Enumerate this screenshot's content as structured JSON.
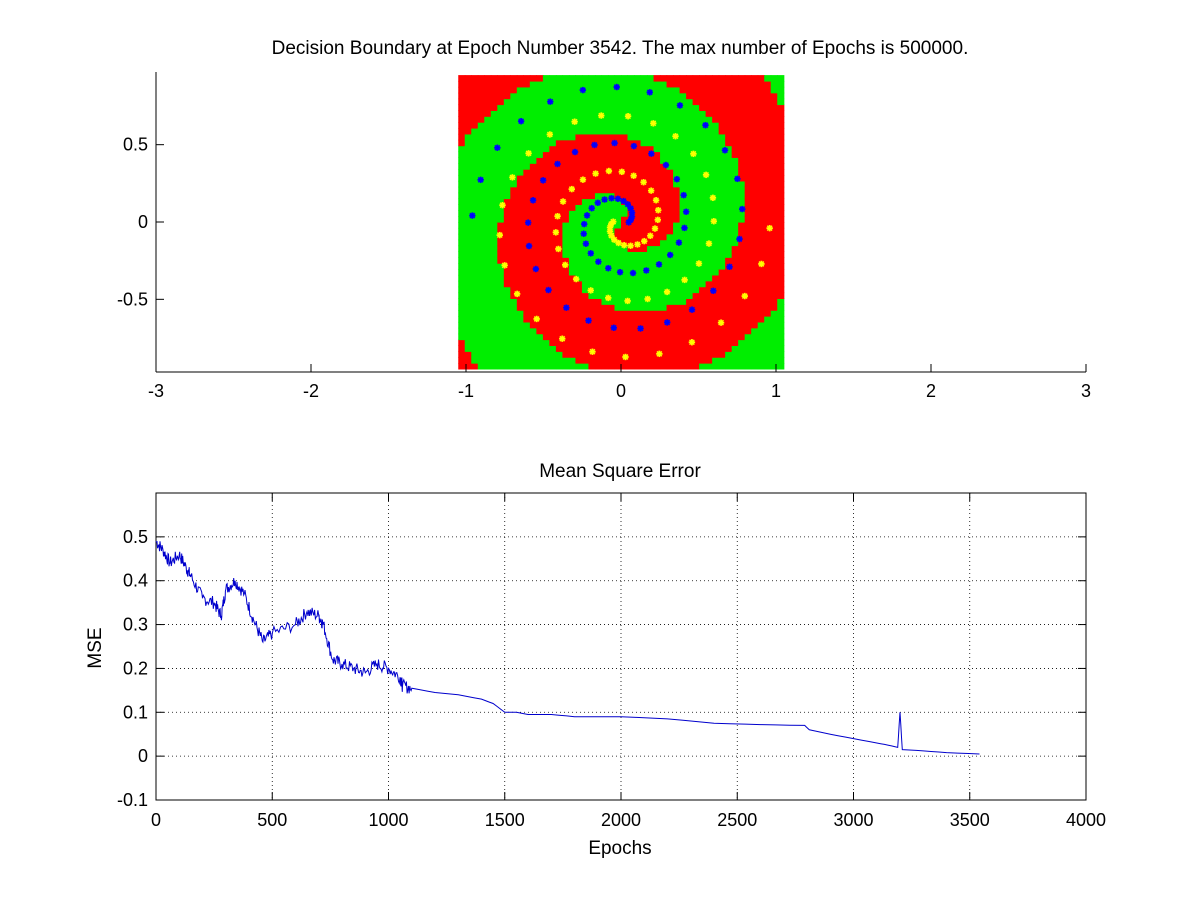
{
  "figure_background": "#ffffff",
  "chart_data": [
    {
      "type": "scatter",
      "title": "Decision Boundary at Epoch Number 3542. The max number of Epochs is 500000.",
      "xlim": [
        -3,
        3
      ],
      "ylim": [
        -0.97,
        0.97
      ],
      "xticks": [
        "-3",
        "-2",
        "-1",
        "0",
        "1",
        "2",
        "3"
      ],
      "xtick_values": [
        -3,
        -2,
        -1,
        0,
        1,
        2,
        3
      ],
      "yticks": [
        "-0.5",
        "0",
        "0.5"
      ],
      "ytick_values": [
        -0.5,
        0,
        0.5
      ],
      "grid": false,
      "region_grid": {
        "x_range": [
          -1.05,
          1.05
        ],
        "y_range": [
          -0.95,
          0.95
        ],
        "spiral_turn_rate": 7.4,
        "spiral_phase": 2.6
      },
      "colors": {
        "region_class_a": "#ff0000",
        "region_class_b": "#00ee00",
        "points_class_a": "#ffff00",
        "points_class_b": "#0000ff"
      },
      "series": [
        {
          "class": "a",
          "color": "#ffff00",
          "marker": "*",
          "spiral": {
            "radius_start": 0.05,
            "radius_end": 0.96,
            "angle_start": 3.1,
            "turns": 2.5
          }
        },
        {
          "class": "b",
          "color": "#0000ff",
          "marker": "*",
          "spiral": {
            "radius_start": 0.05,
            "radius_end": 0.96,
            "angle_start": 6.24,
            "turns": 2.5
          }
        }
      ]
    },
    {
      "type": "line",
      "title": "Mean Square Error",
      "xlabel": "Epochs",
      "ylabel": "MSE",
      "xlim": [
        0,
        4000
      ],
      "ylim": [
        -0.1,
        0.6
      ],
      "xticks": [
        "0",
        "500",
        "1000",
        "1500",
        "2000",
        "2500",
        "3000",
        "3500",
        "4000"
      ],
      "xtick_values": [
        0,
        500,
        1000,
        1500,
        2000,
        2500,
        3000,
        3500,
        4000
      ],
      "yticks": [
        "-0.1",
        "0",
        "0.1",
        "0.2",
        "0.3",
        "0.4",
        "0.5"
      ],
      "ytick_values": [
        -0.1,
        0,
        0.1,
        0.2,
        0.3,
        0.4,
        0.5
      ],
      "grid": true,
      "line_color": "#0000cc",
      "x": [
        0,
        30,
        60,
        100,
        130,
        150,
        200,
        250,
        280,
        300,
        340,
        380,
        420,
        460,
        500,
        600,
        650,
        700,
        720,
        760,
        800,
        850,
        900,
        950,
        1000,
        1050,
        1060,
        1100,
        1200,
        1300,
        1400,
        1450,
        1500,
        1550,
        1600,
        1700,
        1800,
        2000,
        2200,
        2400,
        2600,
        2790,
        2810,
        2900,
        3000,
        3100,
        3150,
        3190,
        3200,
        3210,
        3300,
        3400,
        3542
      ],
      "y": [
        0.49,
        0.47,
        0.44,
        0.46,
        0.43,
        0.41,
        0.36,
        0.35,
        0.32,
        0.38,
        0.4,
        0.37,
        0.31,
        0.26,
        0.28,
        0.3,
        0.33,
        0.32,
        0.3,
        0.22,
        0.21,
        0.2,
        0.19,
        0.21,
        0.2,
        0.18,
        0.16,
        0.155,
        0.145,
        0.14,
        0.13,
        0.12,
        0.1,
        0.1,
        0.095,
        0.095,
        0.09,
        0.09,
        0.085,
        0.075,
        0.072,
        0.07,
        0.06,
        0.05,
        0.04,
        0.03,
        0.025,
        0.02,
        0.1,
        0.015,
        0.012,
        0.008,
        0.005
      ]
    }
  ]
}
